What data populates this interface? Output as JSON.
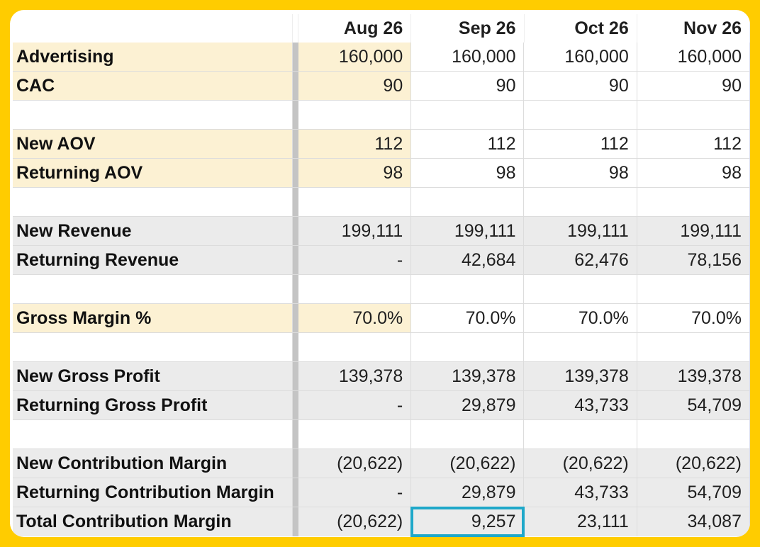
{
  "columns": [
    "Aug 26",
    "Sep 26",
    "Oct 26",
    "Nov 26"
  ],
  "rows": [
    {
      "label": "Advertising",
      "values": [
        "160,000",
        "160,000",
        "160,000",
        "160,000"
      ],
      "style": "yellow"
    },
    {
      "label": "CAC",
      "values": [
        "90",
        "90",
        "90",
        "90"
      ],
      "style": "yellow"
    },
    {
      "label": "",
      "values": [
        "",
        "",
        "",
        ""
      ],
      "style": "blank"
    },
    {
      "label": "New AOV",
      "values": [
        "112",
        "112",
        "112",
        "112"
      ],
      "style": "yellow"
    },
    {
      "label": "Returning AOV",
      "values": [
        "98",
        "98",
        "98",
        "98"
      ],
      "style": "yellow"
    },
    {
      "label": "",
      "values": [
        "",
        "",
        "",
        ""
      ],
      "style": "blank"
    },
    {
      "label": "New Revenue",
      "values": [
        "199,111",
        "199,111",
        "199,111",
        "199,111"
      ],
      "style": "gray"
    },
    {
      "label": "Returning Revenue",
      "values": [
        "-",
        "42,684",
        "62,476",
        "78,156"
      ],
      "style": "gray"
    },
    {
      "label": "",
      "values": [
        "",
        "",
        "",
        ""
      ],
      "style": "blank"
    },
    {
      "label": "Gross Margin %",
      "values": [
        "70.0%",
        "70.0%",
        "70.0%",
        "70.0%"
      ],
      "style": "yellow"
    },
    {
      "label": "",
      "values": [
        "",
        "",
        "",
        ""
      ],
      "style": "blank"
    },
    {
      "label": "New Gross Profit",
      "values": [
        "139,378",
        "139,378",
        "139,378",
        "139,378"
      ],
      "style": "gray"
    },
    {
      "label": "Returning Gross Profit",
      "values": [
        "-",
        "29,879",
        "43,733",
        "54,709"
      ],
      "style": "gray"
    },
    {
      "label": "",
      "values": [
        "",
        "",
        "",
        ""
      ],
      "style": "blank"
    },
    {
      "label": "New Contribution Margin",
      "values": [
        "(20,622)",
        "(20,622)",
        "(20,622)",
        "(20,622)"
      ],
      "style": "gray"
    },
    {
      "label": "Returning Contribution Margin",
      "values": [
        "-",
        "29,879",
        "43,733",
        "54,709"
      ],
      "style": "gray"
    },
    {
      "label": "Total Contribution Margin",
      "values": [
        "(20,622)",
        "9,257",
        "23,111",
        "34,087"
      ],
      "style": "gray"
    }
  ],
  "selected_cell": {
    "row": 16,
    "col": 1
  },
  "colors": {
    "background": "#FFCC00",
    "input_fill": "#FCF1D3",
    "calc_fill": "#EBEBEB",
    "selection": "#1FA8C9"
  }
}
